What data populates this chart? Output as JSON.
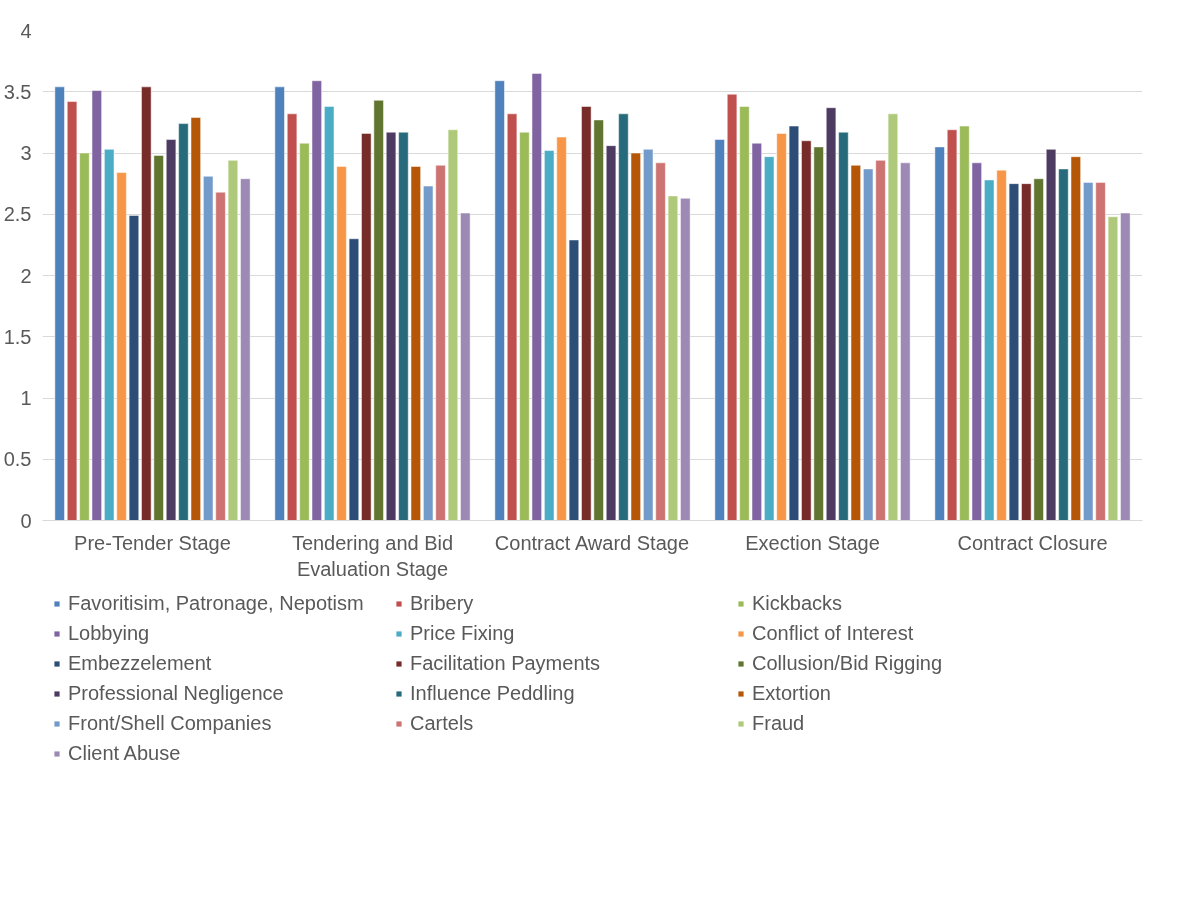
{
  "chart_data": {
    "type": "bar",
    "categories": [
      "Pre-Tender Stage",
      "Tendering and Bid Evaluation Stage",
      "Contract Award Stage",
      "Exection Stage",
      "Contract Closure"
    ],
    "ylim": [
      0,
      4
    ],
    "yticks": [
      0,
      0.5,
      1,
      1.5,
      2,
      2.5,
      3,
      3.5,
      4
    ],
    "grid": "y",
    "legend": "bottom",
    "series": [
      {
        "name": "Favoritisim, Patronage, Nepotism",
        "color": "#4f81bd",
        "values": [
          3.54,
          3.54,
          3.59,
          3.11,
          3.05
        ]
      },
      {
        "name": "Bribery",
        "color": "#c0504d",
        "values": [
          3.42,
          3.32,
          3.32,
          3.48,
          3.19
        ]
      },
      {
        "name": "Kickbacks",
        "color": "#9bbb59",
        "values": [
          3.0,
          3.08,
          3.17,
          3.38,
          3.22
        ]
      },
      {
        "name": "Lobbying",
        "color": "#8064a2",
        "values": [
          3.51,
          3.59,
          3.65,
          3.08,
          2.92
        ]
      },
      {
        "name": "Price Fixing",
        "color": "#4bacc6",
        "values": [
          3.03,
          3.38,
          3.02,
          2.97,
          2.78
        ]
      },
      {
        "name": "Conflict of Interest",
        "color": "#f79646",
        "values": [
          2.84,
          2.89,
          3.13,
          3.16,
          2.86
        ]
      },
      {
        "name": "Embezzelement",
        "color": "#2c4d75",
        "values": [
          2.49,
          2.3,
          2.29,
          3.22,
          2.75
        ]
      },
      {
        "name": "Facilitation Payments",
        "color": "#772c2a",
        "values": [
          3.54,
          3.16,
          3.38,
          3.1,
          2.75
        ]
      },
      {
        "name": "Collusion/Bid Rigging",
        "color": "#5f7530",
        "values": [
          2.98,
          3.43,
          3.27,
          3.05,
          2.79
        ]
      },
      {
        "name": "Professional Negligence",
        "color": "#4d3b62",
        "values": [
          3.11,
          3.17,
          3.06,
          3.37,
          3.03
        ]
      },
      {
        "name": "Influence Peddling",
        "color": "#276a7c",
        "values": [
          3.24,
          3.17,
          3.32,
          3.17,
          2.87
        ]
      },
      {
        "name": "Extortion",
        "color": "#b65708",
        "values": [
          3.29,
          2.89,
          3.0,
          2.9,
          2.97
        ]
      },
      {
        "name": "Front/Shell Companies",
        "color": "#729aca",
        "values": [
          2.81,
          2.73,
          3.03,
          2.87,
          2.76
        ]
      },
      {
        "name": "Cartels",
        "color": "#cd7371",
        "values": [
          2.68,
          2.9,
          2.92,
          2.94,
          2.76
        ]
      },
      {
        "name": "Fraud",
        "color": "#afc97a",
        "values": [
          2.94,
          3.19,
          2.65,
          3.32,
          2.48
        ]
      },
      {
        "name": "Client Abuse",
        "color": "#9c8ab4",
        "values": [
          2.79,
          2.51,
          2.63,
          2.92,
          2.51
        ]
      }
    ]
  }
}
